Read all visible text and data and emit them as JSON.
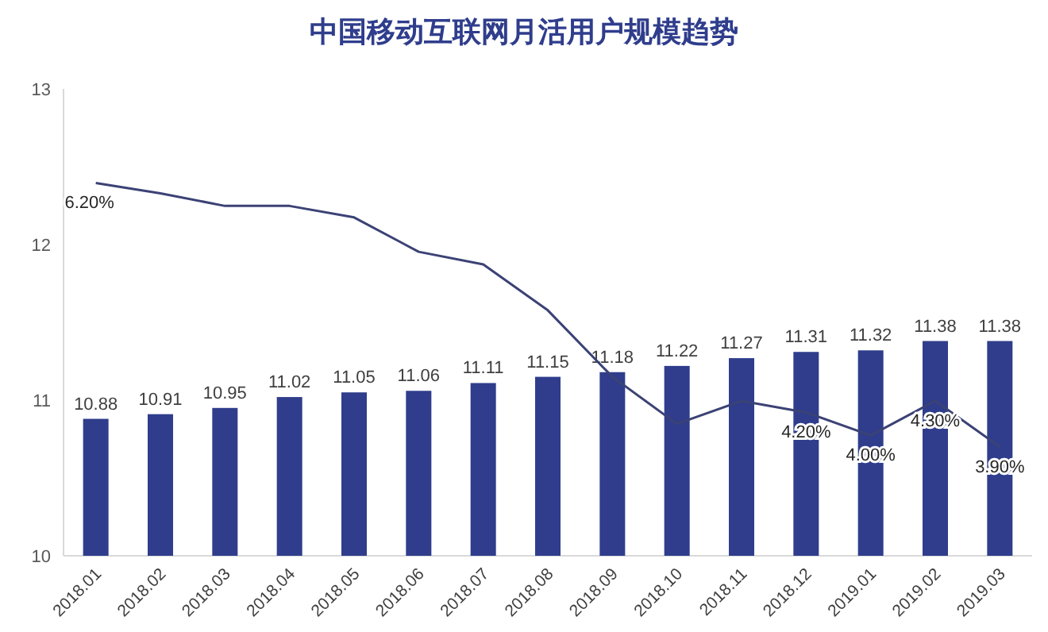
{
  "chart_data": {
    "type": "bar",
    "title": "中国移动互联网月活用户规模趋势",
    "categories": [
      "2018.01",
      "2018.02",
      "2018.03",
      "2018.04",
      "2018.05",
      "2018.06",
      "2018.07",
      "2018.08",
      "2018.09",
      "2018.10",
      "2018.11",
      "2018.12",
      "2019.01",
      "2019.02",
      "2019.03"
    ],
    "series": [
      {
        "color": "#2f3d8c",
        "values": [
          10.88,
          10.91,
          10.95,
          11.02,
          11.05,
          11.06,
          11.11,
          11.15,
          11.18,
          11.22,
          11.27,
          11.31,
          11.32,
          11.38,
          11.38
        ],
        "data_labels": true
      },
      {
        "type": "line",
        "axis": "y2",
        "color": "#3b4275",
        "values": [
          6.2,
          6.11,
          6.0,
          6.0,
          5.9,
          5.6,
          5.49,
          5.09,
          4.51,
          4.1,
          4.3,
          4.2,
          4.0,
          4.3,
          3.9
        ],
        "value_labels": [
          "6.20%",
          null,
          null,
          null,
          null,
          null,
          null,
          null,
          null,
          null,
          null,
          "4.20%",
          "4.00%",
          "4.30%",
          "3.90%"
        ]
      }
    ],
    "ylim": [
      10,
      13
    ],
    "yticks": [
      10,
      11,
      12,
      13
    ],
    "y2lim": [
      2.95,
      7.02
    ],
    "marker": "none",
    "line_style": "solid"
  }
}
